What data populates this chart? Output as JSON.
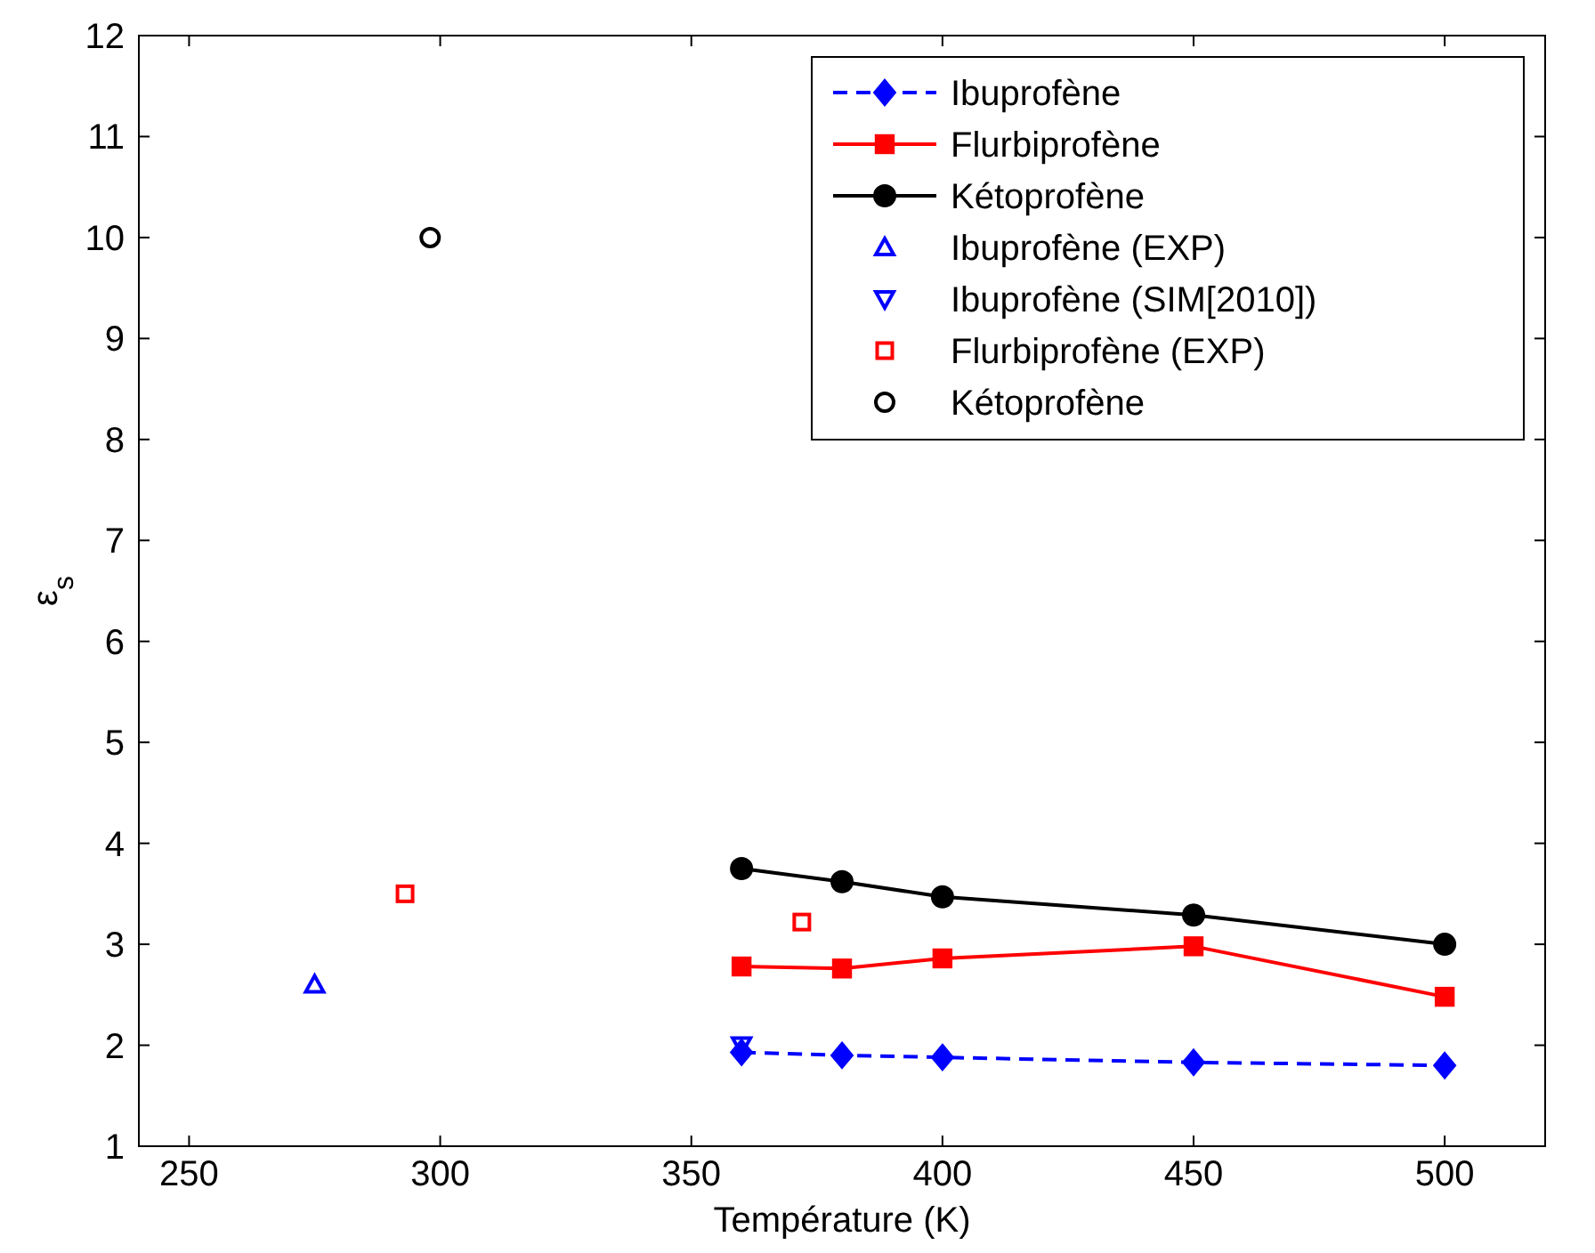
{
  "chart_data": {
    "type": "line",
    "xlabel": "Température (K)",
    "ylabel": "ε$_{s}$",
    "xlim": [
      240,
      520
    ],
    "xticks": [
      250,
      300,
      350,
      400,
      450,
      500
    ],
    "ylim": [
      1,
      12
    ],
    "yticks": [
      1,
      2,
      3,
      4,
      5,
      6,
      7,
      8,
      9,
      10,
      11,
      12
    ],
    "grid": false,
    "legend": "top right",
    "series": [
      {
        "name": "Ibuprofène",
        "color": "#0000ff",
        "marker": "diamond",
        "line_style": "dashed",
        "x": [
          360,
          380,
          400,
          450,
          500
        ],
        "values": [
          1.93,
          1.9,
          1.88,
          1.83,
          1.8
        ]
      },
      {
        "name": "Flurbiprofène",
        "color": "#ff0000",
        "marker": "square",
        "line_style": "solid",
        "x": [
          360,
          380,
          400,
          450,
          500
        ],
        "values": [
          2.78,
          2.76,
          2.86,
          2.98,
          2.48
        ]
      },
      {
        "name": "Kétoprofène",
        "color": "#000000",
        "marker": "circle",
        "line_style": "solid",
        "x": [
          360,
          380,
          400,
          450,
          500
        ],
        "values": [
          3.75,
          3.62,
          3.47,
          3.29,
          3.0
        ]
      },
      {
        "name": "Ibuprofène (EXP)",
        "type": "scatter",
        "color": "#0000ff",
        "marker": "triangle",
        "x": [
          275
        ],
        "values": [
          2.6
        ]
      },
      {
        "name": "Ibuprofène (SIM[2010])",
        "type": "scatter",
        "color": "#0000ff",
        "marker": "triangle_down",
        "x": [
          360
        ],
        "values": [
          2.0
        ]
      },
      {
        "name": "Flurbiprofène (EXP)",
        "type": "scatter",
        "color": "#ff0000",
        "marker": "square",
        "x": [
          293,
          372
        ],
        "values": [
          3.5,
          3.22
        ]
      },
      {
        "name": "Kétoprofène",
        "type": "scatter",
        "color": "#000000",
        "marker": "circle",
        "x": [
          298
        ],
        "values": [
          10.0
        ]
      }
    ]
  }
}
